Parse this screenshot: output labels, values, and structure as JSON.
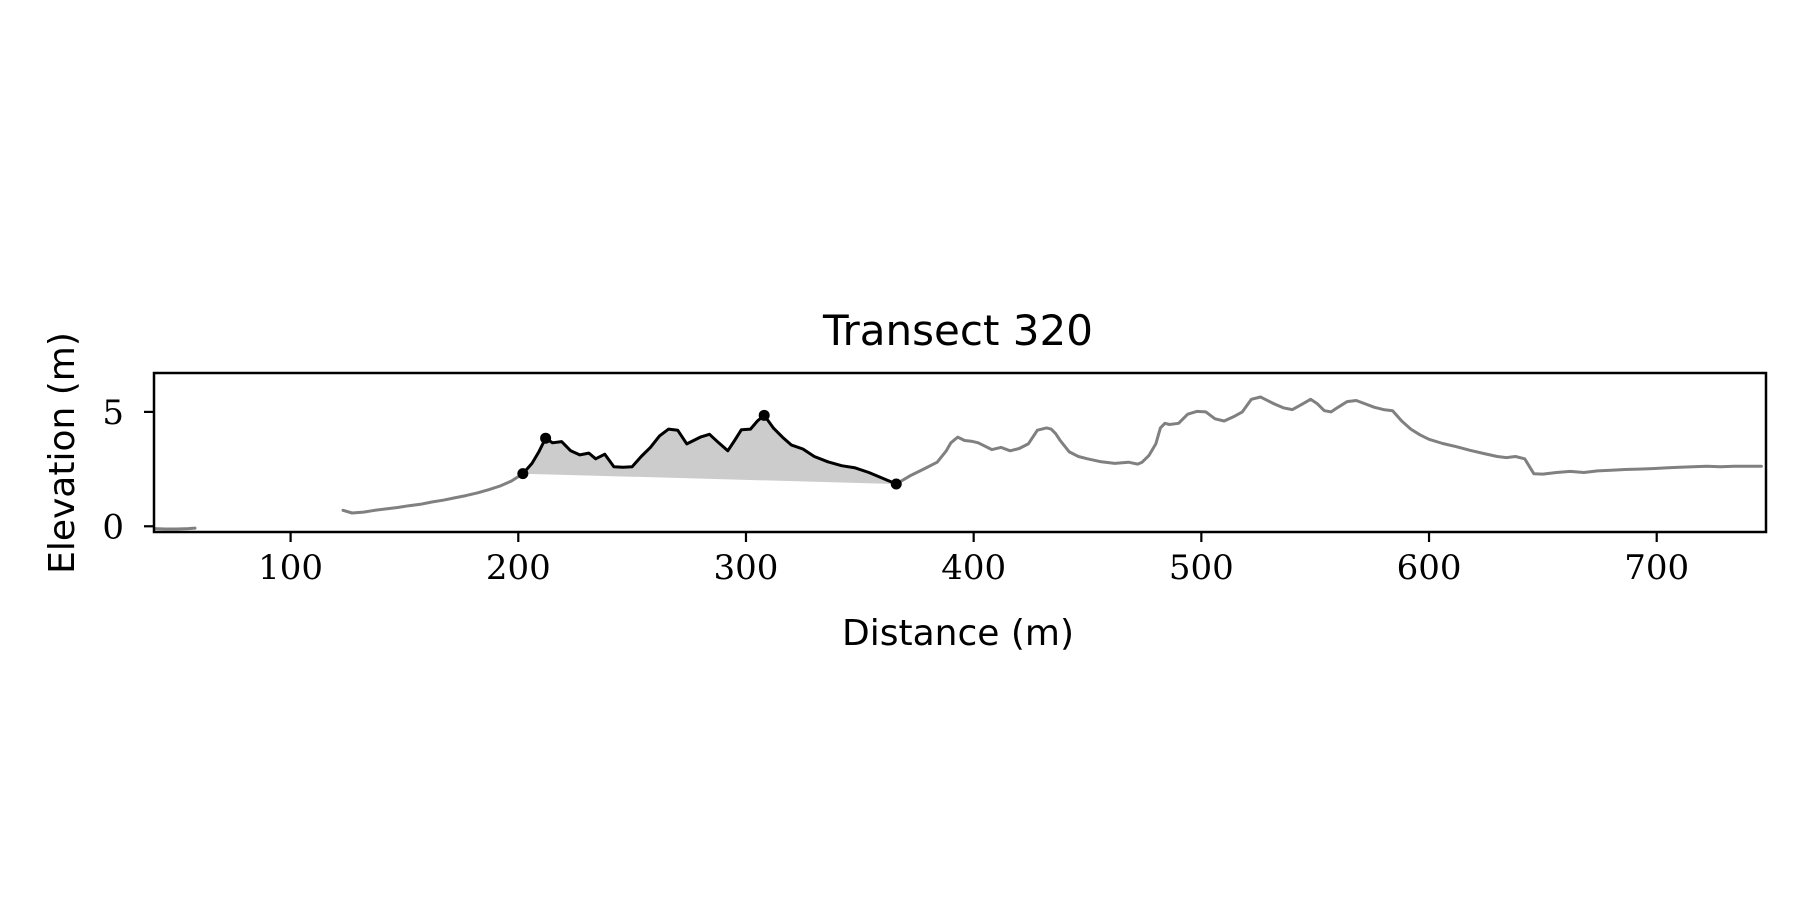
{
  "chart_data": {
    "type": "line",
    "title": "Transect 320",
    "xlabel": "Distance (m)",
    "ylabel": "Elevation (m)",
    "xlim": [
      40,
      748
    ],
    "ylim": [
      -0.25,
      6.7
    ],
    "xticks": [
      100,
      200,
      300,
      400,
      500,
      600,
      700
    ],
    "yticks": [
      0,
      5
    ],
    "grid": false,
    "legend": "none",
    "colors": {
      "profile": "#808080",
      "dune": "#000000",
      "fill": "#cccccc",
      "markers": "#000000"
    },
    "series": [
      {
        "role": "profile-segment",
        "color": "#808080",
        "x": [
          40,
          45,
          50,
          55,
          58
        ],
        "y": [
          -0.1,
          -0.12,
          -0.12,
          -0.1,
          -0.08
        ]
      },
      {
        "role": "profile",
        "color": "#808080",
        "x": [
          123,
          127,
          132,
          137,
          142,
          147,
          152,
          157,
          162,
          167,
          172,
          177,
          182,
          187,
          192,
          197,
          202
        ],
        "y": [
          0.7,
          0.58,
          0.62,
          0.7,
          0.76,
          0.82,
          0.9,
          0.96,
          1.06,
          1.14,
          1.24,
          1.34,
          1.46,
          1.6,
          1.76,
          1.98,
          2.3
        ]
      },
      {
        "role": "dune",
        "color": "#000000",
        "x": [
          202,
          206,
          209,
          212,
          215,
          219,
          223,
          227,
          231,
          234,
          238,
          242,
          246,
          250,
          254,
          258,
          262,
          266,
          270,
          274,
          277,
          280,
          284,
          288,
          292,
          295,
          298,
          302,
          305,
          308,
          312,
          316,
          320,
          325,
          330,
          336,
          342,
          348,
          354,
          360,
          366
        ],
        "y": [
          2.3,
          2.75,
          3.25,
          3.85,
          3.65,
          3.7,
          3.3,
          3.12,
          3.2,
          2.95,
          3.15,
          2.6,
          2.58,
          2.6,
          3.05,
          3.45,
          3.95,
          4.25,
          4.2,
          3.6,
          3.75,
          3.9,
          4.02,
          3.65,
          3.3,
          3.75,
          4.22,
          4.25,
          4.6,
          4.85,
          4.3,
          3.9,
          3.55,
          3.38,
          3.05,
          2.82,
          2.65,
          2.55,
          2.35,
          2.1,
          1.85
        ]
      },
      {
        "role": "profile",
        "color": "#808080",
        "x": [
          366,
          372,
          378,
          384,
          388,
          390,
          393,
          396,
          399,
          402,
          405,
          408,
          412,
          416,
          420,
          424,
          428,
          432,
          434,
          436,
          438,
          442,
          446,
          450,
          456,
          462,
          468,
          472,
          474,
          477,
          480,
          482,
          484,
          486,
          490,
          494,
          498,
          502,
          506,
          510,
          514,
          518,
          522,
          526,
          528,
          532,
          536,
          540,
          544,
          548,
          551,
          554,
          557,
          560,
          564,
          568,
          572,
          576,
          580,
          584,
          588,
          592,
          596,
          600,
          606,
          612,
          618,
          624,
          630,
          634,
          638,
          642,
          646,
          650,
          656,
          662,
          668,
          674,
          680,
          686,
          692,
          698,
          704,
          710,
          716,
          722,
          728,
          734,
          740,
          746
        ],
        "y": [
          1.85,
          2.2,
          2.5,
          2.8,
          3.3,
          3.65,
          3.9,
          3.75,
          3.72,
          3.65,
          3.5,
          3.35,
          3.45,
          3.3,
          3.4,
          3.6,
          4.2,
          4.3,
          4.25,
          4.05,
          3.75,
          3.25,
          3.05,
          2.95,
          2.82,
          2.75,
          2.8,
          2.72,
          2.8,
          3.1,
          3.6,
          4.3,
          4.5,
          4.45,
          4.5,
          4.9,
          5.02,
          5.0,
          4.7,
          4.6,
          4.78,
          5.0,
          5.55,
          5.65,
          5.55,
          5.35,
          5.18,
          5.1,
          5.32,
          5.55,
          5.35,
          5.05,
          5.0,
          5.2,
          5.45,
          5.5,
          5.35,
          5.2,
          5.1,
          5.05,
          4.6,
          4.25,
          4.0,
          3.8,
          3.62,
          3.48,
          3.32,
          3.18,
          3.05,
          3.0,
          3.05,
          2.95,
          2.3,
          2.28,
          2.35,
          2.4,
          2.35,
          2.42,
          2.45,
          2.48,
          2.5,
          2.52,
          2.55,
          2.58,
          2.6,
          2.62,
          2.6,
          2.62,
          2.62,
          2.62
        ]
      }
    ],
    "fill_region": {
      "upper_x": [
        202,
        206,
        209,
        212,
        215,
        219,
        223,
        227,
        231,
        234,
        238,
        242,
        246,
        250,
        254,
        258,
        262,
        266,
        270,
        274,
        277,
        280,
        284,
        288,
        292,
        295,
        298,
        302,
        305,
        308,
        312,
        316,
        320,
        325,
        330,
        336,
        342,
        348,
        354,
        360,
        366
      ],
      "upper_y": [
        2.3,
        2.75,
        3.25,
        3.85,
        3.65,
        3.7,
        3.3,
        3.12,
        3.2,
        2.95,
        3.15,
        2.6,
        2.58,
        2.6,
        3.05,
        3.45,
        3.95,
        4.25,
        4.2,
        3.6,
        3.75,
        3.9,
        4.02,
        3.65,
        3.3,
        3.75,
        4.22,
        4.25,
        4.6,
        4.85,
        4.3,
        3.9,
        3.55,
        3.38,
        3.05,
        2.82,
        2.65,
        2.55,
        2.35,
        2.1,
        1.85
      ],
      "base_x": [
        202,
        366
      ],
      "base_y": [
        2.3,
        1.85
      ]
    },
    "markers": [
      {
        "x": 202,
        "y": 2.3
      },
      {
        "x": 212,
        "y": 3.85
      },
      {
        "x": 308,
        "y": 4.85
      },
      {
        "x": 366,
        "y": 1.85
      }
    ]
  }
}
